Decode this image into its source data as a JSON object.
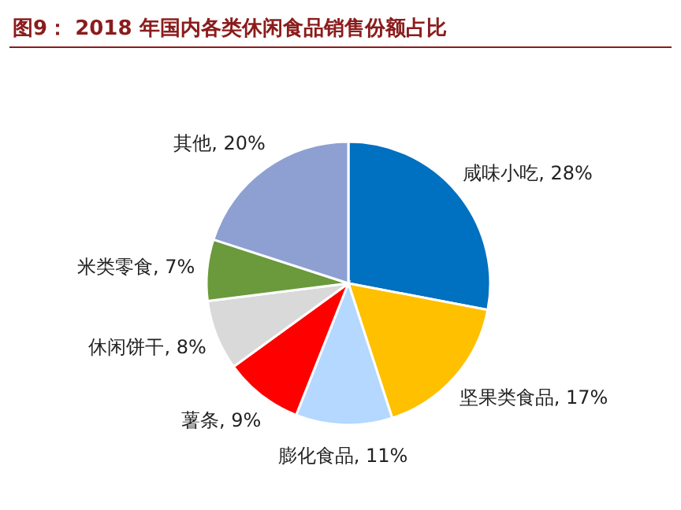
{
  "chart_data": {
    "type": "pie",
    "title": "图9： 2018 年国内各类休闲食品销售份额占比",
    "categories": [
      "咸味小吃",
      "坚果类食品",
      "膨化食品",
      "薯条",
      "休闲饼干",
      "米类零食",
      "其他"
    ],
    "values": [
      28,
      17,
      11,
      9,
      8,
      7,
      20
    ],
    "value_labels": [
      "28%",
      "17%",
      "11%",
      "9%",
      "8%",
      "7%",
      "20%"
    ],
    "colors": [
      "#0070c0",
      "#ffc000",
      "#b4d8ff",
      "#ff0000",
      "#d9d9d9",
      "#6a9a3c",
      "#8ea0d2"
    ]
  }
}
